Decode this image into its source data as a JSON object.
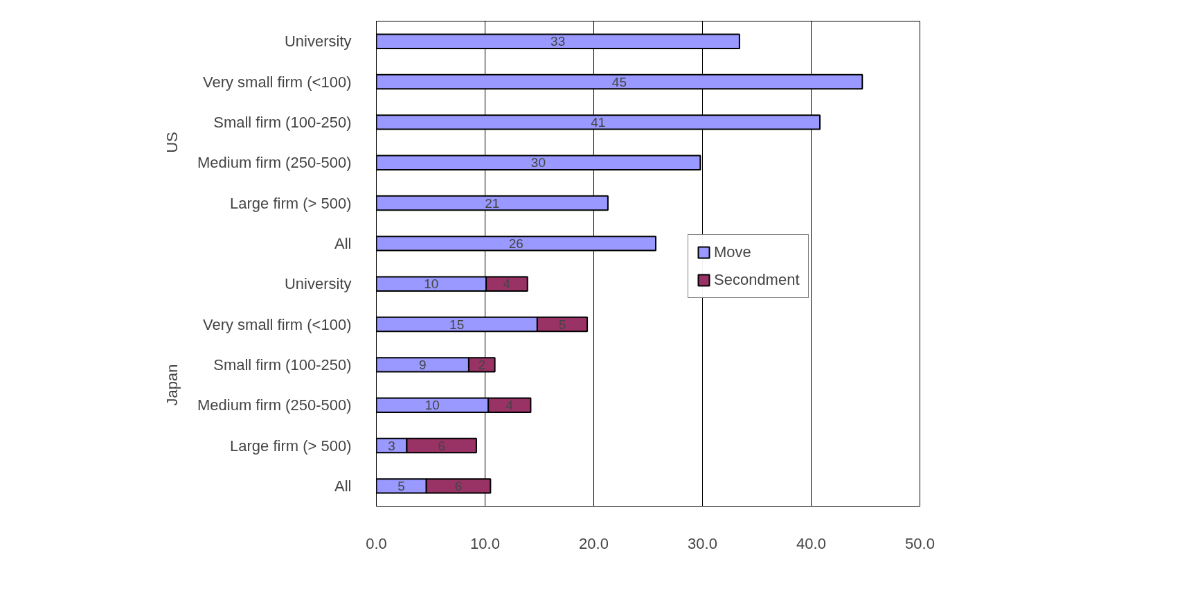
{
  "chart_data": {
    "type": "bar",
    "orientation": "horizontal",
    "stacked": true,
    "categories": [
      "University",
      "Very small firm (<100)",
      "Small firm (100-250)",
      "Medium firm (250-500)",
      "Large firm (> 500)",
      "All",
      "University",
      "Very small firm (<100)",
      "Small firm (100-250)",
      "Medium firm (250-500)",
      "Large firm (> 500)",
      "All"
    ],
    "series": [
      {
        "name": "Move",
        "color": "#9999ff",
        "values": [
          33.4,
          44.7,
          40.8,
          29.8,
          21.3,
          25.7,
          10.1,
          14.8,
          8.5,
          10.3,
          2.8,
          4.6
        ],
        "value_labels": [
          "33",
          "45",
          "41",
          "30",
          "21",
          "26",
          "10",
          "15",
          "9",
          "10",
          "3",
          "5"
        ]
      },
      {
        "name": "Secondment",
        "color": "#993366",
        "values": [
          null,
          null,
          null,
          null,
          null,
          null,
          3.8,
          4.6,
          2.4,
          3.9,
          6.4,
          5.9
        ],
        "value_labels": [
          null,
          null,
          null,
          null,
          null,
          null,
          "4",
          "5",
          "2",
          "4",
          "6",
          "6"
        ]
      }
    ],
    "annotations": [
      "US",
      "Japan"
    ],
    "xlim": [
      0,
      50
    ],
    "xticks": [
      {
        "value": 0,
        "label": "0.0"
      },
      {
        "value": 10,
        "label": "10.0"
      },
      {
        "value": 20,
        "label": "20.0"
      },
      {
        "value": 30,
        "label": "30.0"
      },
      {
        "value": 40,
        "label": "40.0"
      },
      {
        "value": 50,
        "label": "50.0"
      }
    ],
    "grid": "x",
    "legend": "right"
  }
}
